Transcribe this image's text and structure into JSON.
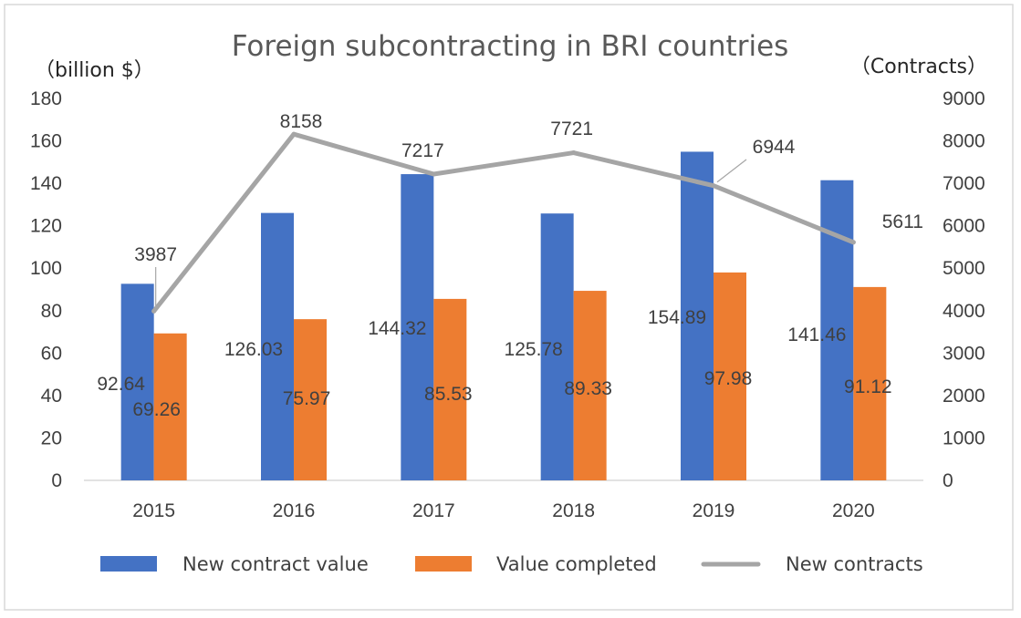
{
  "chart_data": {
    "type": "bar",
    "title": "Foreign subcontracting in BRI countries",
    "y_left_unit": "（billion $）",
    "y_right_unit": "（Contracts）",
    "categories": [
      "2015",
      "2016",
      "2017",
      "2018",
      "2019",
      "2020"
    ],
    "y_left_ticks": [
      "0",
      "20",
      "40",
      "60",
      "80",
      "100",
      "120",
      "140",
      "160",
      "180"
    ],
    "y_right_ticks": [
      "0",
      "1000",
      "2000",
      "3000",
      "4000",
      "5000",
      "6000",
      "7000",
      "8000",
      "9000"
    ],
    "ylim_left": [
      0,
      180
    ],
    "ylim_right": [
      0,
      9000
    ],
    "series": [
      {
        "name": "New contract value",
        "chart": "bar",
        "axis": "left",
        "color": "#4472C4",
        "values": [
          92.64,
          126.03,
          144.32,
          125.78,
          154.89,
          141.46
        ],
        "labels": [
          "92.64",
          "126.03",
          "144.32",
          "125.78",
          "154.89",
          "141.46"
        ]
      },
      {
        "name": "Value completed",
        "chart": "bar",
        "axis": "left",
        "color": "#ED7D31",
        "values": [
          69.26,
          75.97,
          85.53,
          89.33,
          97.98,
          91.12
        ],
        "labels": [
          "69.26",
          "75.97",
          "85.53",
          "89.33",
          "97.98",
          "91.12"
        ]
      },
      {
        "name": "New contracts",
        "chart": "line",
        "axis": "right",
        "color": "#A5A5A5",
        "values": [
          3987,
          8158,
          7217,
          7721,
          6944,
          5611
        ],
        "labels": [
          "3987",
          "8158",
          "7217",
          "7721",
          "6944",
          "5611"
        ]
      }
    ],
    "grid": false,
    "legend_position": "bottom"
  }
}
